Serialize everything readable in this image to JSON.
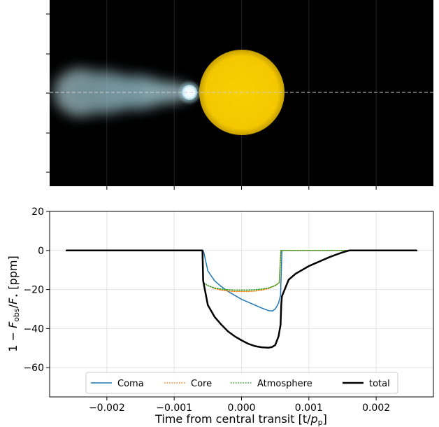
{
  "colors": {
    "background_panel": "#000000",
    "star": "#f5cc00",
    "comet_nucleus": "#e8f6fb",
    "comet_tail": "#8fb6bf",
    "center_line": "#cccccc",
    "coma": "#1f77b4",
    "core": "#ff7f0e",
    "atmosphere": "#2ca02c",
    "total": "#000000"
  },
  "chart_data": [
    {
      "type": "image",
      "description_words": "comet transit illustration",
      "objects": [
        "star",
        "comet nucleus",
        "comet tail"
      ]
    },
    {
      "type": "line",
      "title": "",
      "xlabel": "Time from central transit [t/p_p]",
      "ylabel": "1 − F_obs/F_* [ppm]",
      "xlim": [
        -0.00285,
        0.00285
      ],
      "ylim": [
        -75,
        20
      ],
      "xticks": [
        -0.002,
        -0.001,
        0.0,
        0.001,
        0.002
      ],
      "xtick_labels": [
        "−0.002",
        "−0.001",
        "0.000",
        "0.001",
        "0.002"
      ],
      "yticks": [
        20,
        0,
        -20,
        -40,
        -60
      ],
      "ytick_labels": [
        "20",
        "0",
        "−20",
        "−40",
        "−60"
      ],
      "grid": true,
      "legend_position": "lower-center",
      "series": [
        {
          "name": "Coma",
          "color": "#1f77b4",
          "style": "solid",
          "x": [
            -0.0026,
            -0.000575,
            -0.00056,
            -0.0005,
            -0.0004,
            -0.0003,
            -0.0002,
            -0.0001,
            0.0,
            0.0001,
            0.0002,
            0.0003,
            0.0004,
            0.00046,
            0.0005,
            0.00055,
            0.00058,
            0.0006,
            0.0016,
            0.0026
          ],
          "y": [
            0,
            0,
            -1,
            -10.5,
            -15.5,
            -18.5,
            -21,
            -23,
            -25,
            -26.5,
            -28,
            -29.5,
            -30.8,
            -31,
            -30,
            -27,
            -23,
            0,
            0,
            0
          ]
        },
        {
          "name": "Core",
          "color": "#ff7f0e",
          "style": "dotted",
          "x": [
            -0.0026,
            -0.000575,
            -0.000565,
            -0.0005,
            -0.0004,
            -0.0003,
            -0.0002,
            -0.0001,
            0.0,
            0.0001,
            0.0002,
            0.0003,
            0.0004,
            0.0005,
            0.00056,
            0.000585,
            0.0006,
            0.0026
          ],
          "y": [
            0,
            0,
            -16.5,
            -18,
            -19.5,
            -20.3,
            -20.8,
            -21,
            -21,
            -21,
            -20.8,
            -20.3,
            -19.5,
            -18,
            -16.5,
            0,
            0,
            0
          ]
        },
        {
          "name": "Atmosphere",
          "color": "#2ca02c",
          "style": "dotted",
          "x": [
            -0.0026,
            -0.000575,
            -0.000565,
            -0.0005,
            -0.0004,
            -0.0003,
            -0.0002,
            -0.0001,
            0.0,
            0.0001,
            0.0002,
            0.0003,
            0.0004,
            0.0005,
            0.00056,
            0.000585,
            0.0006,
            0.0026
          ],
          "y": [
            0,
            0,
            -16.5,
            -18,
            -19.2,
            -19.8,
            -20.1,
            -20.3,
            -20.3,
            -20.3,
            -20.1,
            -19.8,
            -19.2,
            -18,
            -16.5,
            0,
            0,
            0
          ]
        },
        {
          "name": "total",
          "color": "#000000",
          "style": "solid",
          "x": [
            -0.0026,
            -0.00058,
            -0.00057,
            -0.0005,
            -0.0004,
            -0.0003,
            -0.0002,
            -0.0001,
            0.0,
            0.0001,
            0.0002,
            0.0003,
            0.0004,
            0.00045,
            0.0005,
            0.00055,
            0.00058,
            0.00059,
            0.0006,
            0.0007,
            0.0008,
            0.0009,
            0.001,
            0.0011,
            0.0012,
            0.0013,
            0.0014,
            0.0015,
            0.0016,
            0.0026
          ],
          "y": [
            0,
            0,
            -15.5,
            -28,
            -34,
            -38,
            -41.5,
            -44,
            -46,
            -47.8,
            -49,
            -49.6,
            -49.8,
            -49.5,
            -48.5,
            -44,
            -38,
            -28,
            -23.5,
            -15,
            -12,
            -10,
            -8,
            -6.5,
            -5,
            -3.5,
            -2.2,
            -1,
            0,
            0
          ]
        }
      ]
    }
  ]
}
